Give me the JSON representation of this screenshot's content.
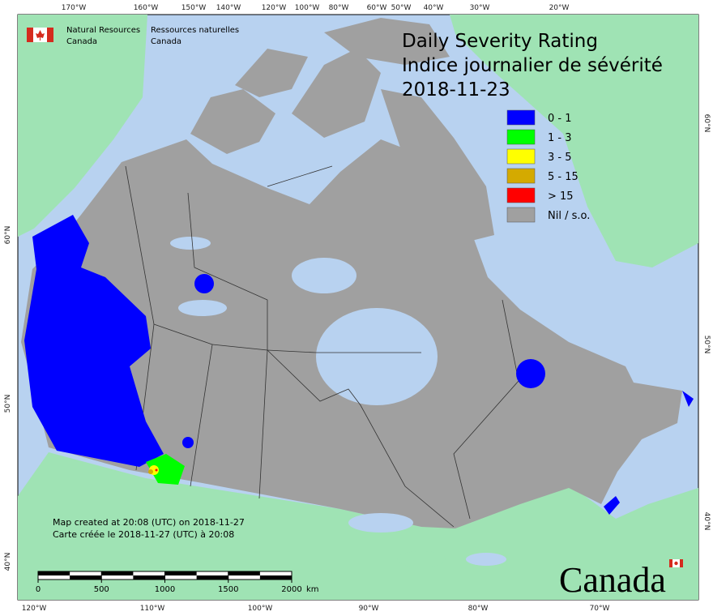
{
  "header": {
    "org_en": "Natural Resources",
    "org_en_2": "Canada",
    "org_fr": "Ressources naturelles",
    "org_fr_2": "Canada"
  },
  "title": {
    "line1": "Daily Severity Rating",
    "line2": "Indice journalier de sévérité",
    "date": "2018-11-23"
  },
  "legend": [
    {
      "label": "0 - 1",
      "color": "#0000ff"
    },
    {
      "label": "1 - 3",
      "color": "#00ff00"
    },
    {
      "label": "3 - 5",
      "color": "#ffff00"
    },
    {
      "label": "5 - 15",
      "color": "#d4aa00"
    },
    {
      "label": "> 15",
      "color": "#ff0000"
    },
    {
      "label": "Nil / s.o.",
      "color": "#a0a0a0"
    }
  ],
  "graticule": {
    "top": [
      "170°W",
      "160°W",
      "150°W",
      "140°W",
      "120°W",
      "100°W",
      "80°W",
      "60°W",
      "50°W",
      "40°W",
      "30°W",
      "20°W"
    ],
    "bottom": [
      "120°W",
      "110°W",
      "100°W",
      "90°W",
      "80°W",
      "70°W"
    ],
    "left": [
      "60°N",
      "50°N",
      "40°N"
    ],
    "right": [
      "60°N",
      "50°N",
      "40°N"
    ]
  },
  "notes": {
    "created_en": "Map created at 20:08 (UTC) on 2018-11-27",
    "created_fr": "Carte créée le 2018-11-27 (UTC) à 20:08"
  },
  "scale": {
    "ticks": [
      0,
      500,
      1000,
      1500,
      2000
    ],
    "unit": "km"
  },
  "wordmark": "Canada"
}
